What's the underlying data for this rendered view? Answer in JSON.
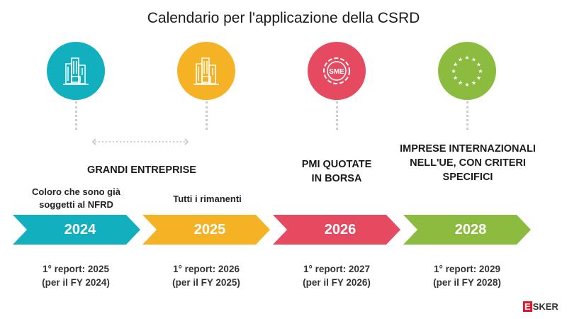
{
  "title": "Calendario per l'applicazione della CSRD",
  "group_label": "GRANDI ENTREPRISE",
  "colors": {
    "teal": "#12AFBE",
    "yellow": "#F4B224",
    "red": "#E64A61",
    "green": "#8BBC40"
  },
  "steps": [
    {
      "icon": "office-buildings-icon",
      "subtitle": "Coloro che sono già soggetti al NFRD",
      "year": "2024",
      "report": "1° report: 2025",
      "fy": "(per il FY 2024)"
    },
    {
      "icon": "office-buildings-icon",
      "subtitle": "Tutti i rimanenti",
      "year": "2025",
      "report": "1° report: 2026",
      "fy": "(per il FY 2025)"
    },
    {
      "icon": "sme-gear-icon",
      "icon_text": "SME",
      "label": "PMI QUOTATE IN BORSA",
      "year": "2026",
      "report": "1° report: 2027",
      "fy": "(per il FY 2026)"
    },
    {
      "icon": "eu-stars-icon",
      "label": "IMPRESE INTERNAZIONALI NELL'UE, CON CRITERI SPECIFICI",
      "year": "2028",
      "report": "1° report: 2029",
      "fy": "(per il FY 2028)"
    }
  ],
  "logo": "ESKER"
}
